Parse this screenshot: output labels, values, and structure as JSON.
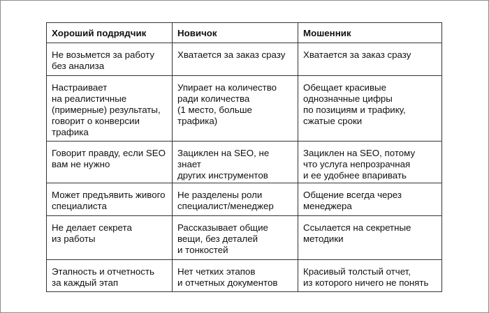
{
  "headers": [
    "Хороший подрядчик",
    "Новичок",
    "Мошенник"
  ],
  "rows": [
    [
      "Не возьмется за работу\nбез анализа",
      "Хватается за заказ сразу",
      "Хватается за заказ сразу"
    ],
    [
      "Настраивает\nна реалистичные\n(примерные) результаты,\nговорит о конверсии\nтрафика",
      "Упирает на количество\nради количества\n(1 место, больше трафика)",
      "Обещает красивые\nоднозначные цифры\nпо позициям и трафику,\nсжатые сроки"
    ],
    [
      "Говорит правду, если SEO\nвам не нужно",
      "Зациклен на SEO, не знает\nдругих инструментов",
      "Зациклен на SEO, потому\nчто услуга непрозрачная\nи ее удобнее впаривать"
    ],
    [
      "Может предъявить живого\nспециалиста",
      "Не разделены роли\nспециалист/менеджер",
      "Общение всегда через\nменеджера"
    ],
    [
      "Не делает секрета\nиз работы",
      "Рассказывает общие\nвещи, без деталей\nи тонкостей",
      "Ссылается на секретные\nметодики"
    ],
    [
      "Этапность и отчетность\nза каждый этап",
      "Нет четких этапов\nи отчетных документов",
      "Красивый толстый отчет,\nиз которого ничего не понять"
    ]
  ]
}
